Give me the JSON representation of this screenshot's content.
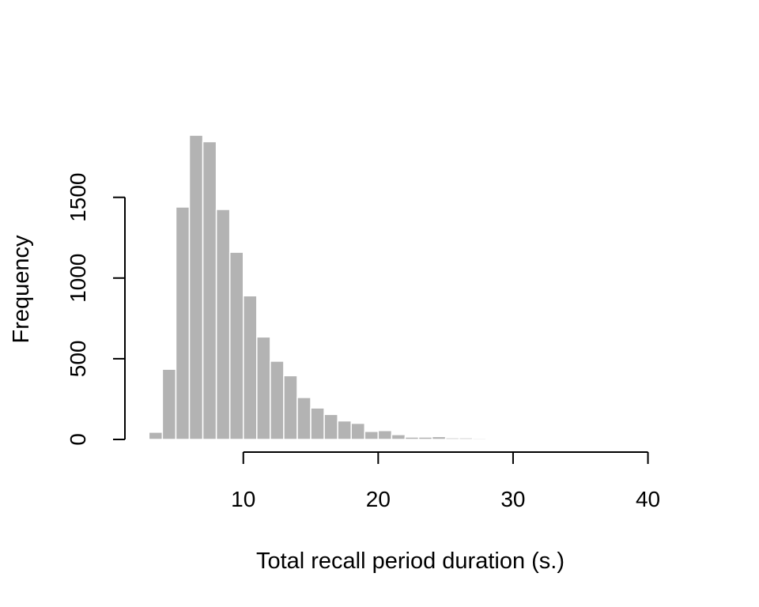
{
  "chart_data": {
    "type": "bar",
    "subtype": "histogram",
    "title": "",
    "xlabel": "Total recall period duration (s.)",
    "ylabel": "Frequency",
    "bar_color": "#b3b3b3",
    "bar_edge_color": "#ffffff",
    "grid": false,
    "bin_width": 1,
    "bins": [
      {
        "x0": 3,
        "x1": 4,
        "count": 45
      },
      {
        "x0": 4,
        "x1": 5,
        "count": 435
      },
      {
        "x0": 5,
        "x1": 6,
        "count": 1440
      },
      {
        "x0": 6,
        "x1": 7,
        "count": 1885
      },
      {
        "x0": 7,
        "x1": 8,
        "count": 1845
      },
      {
        "x0": 8,
        "x1": 9,
        "count": 1425
      },
      {
        "x0": 9,
        "x1": 10,
        "count": 1160
      },
      {
        "x0": 10,
        "x1": 11,
        "count": 890
      },
      {
        "x0": 11,
        "x1": 12,
        "count": 635
      },
      {
        "x0": 12,
        "x1": 13,
        "count": 485
      },
      {
        "x0": 13,
        "x1": 14,
        "count": 395
      },
      {
        "x0": 14,
        "x1": 15,
        "count": 260
      },
      {
        "x0": 15,
        "x1": 16,
        "count": 195
      },
      {
        "x0": 16,
        "x1": 17,
        "count": 155
      },
      {
        "x0": 17,
        "x1": 18,
        "count": 115
      },
      {
        "x0": 18,
        "x1": 19,
        "count": 100
      },
      {
        "x0": 19,
        "x1": 20,
        "count": 50
      },
      {
        "x0": 20,
        "x1": 21,
        "count": 55
      },
      {
        "x0": 21,
        "x1": 22,
        "count": 30
      },
      {
        "x0": 22,
        "x1": 23,
        "count": 15
      },
      {
        "x0": 23,
        "x1": 24,
        "count": 15
      },
      {
        "x0": 24,
        "x1": 25,
        "count": 18
      },
      {
        "x0": 25,
        "x1": 26,
        "count": 10
      },
      {
        "x0": 26,
        "x1": 27,
        "count": 10
      },
      {
        "x0": 27,
        "x1": 28,
        "count": 8
      },
      {
        "x0": 28,
        "x1": 29,
        "count": 6
      },
      {
        "x0": 29,
        "x1": 30,
        "count": 5
      },
      {
        "x0": 30,
        "x1": 31,
        "count": 3
      },
      {
        "x0": 31,
        "x1": 32,
        "count": 3
      }
    ],
    "xlim": [
      0.8,
      41
    ],
    "ylim": [
      0,
      1900
    ],
    "x_axis": {
      "ticks": [
        10,
        20,
        30,
        40
      ],
      "tick_labels": [
        "10",
        "20",
        "30",
        "40"
      ],
      "range": [
        10,
        40
      ]
    },
    "y_axis": {
      "ticks": [
        0,
        500,
        1000,
        1500
      ],
      "tick_labels": [
        "0",
        "500",
        "1000",
        "1500"
      ],
      "range": [
        0,
        1500
      ]
    }
  }
}
